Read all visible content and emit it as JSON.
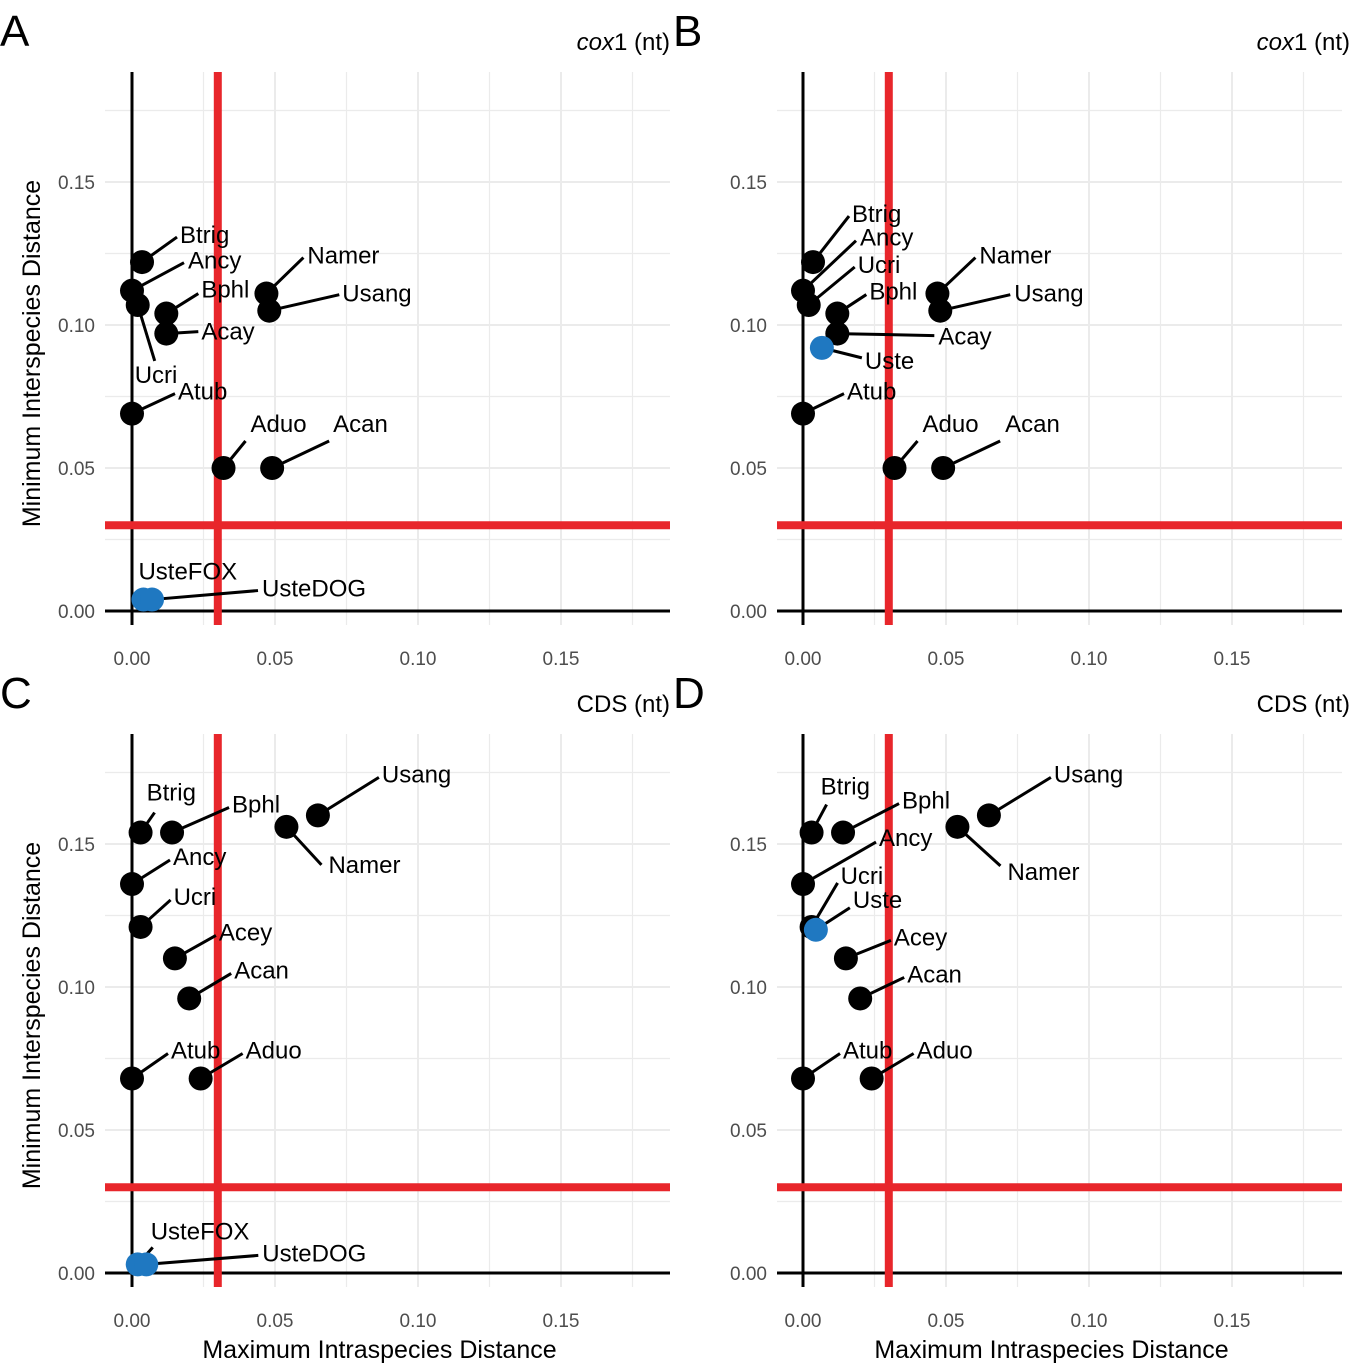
{
  "chart_data": [
    {
      "type": "scatter",
      "panel_label": "A",
      "title_italic": "cox",
      "title_rest": "1 (nt)",
      "xlabel": "",
      "ylabel": "Minimum Interspecies Distance",
      "xlim": [
        -0.0095,
        0.188
      ],
      "ylim": [
        -0.005,
        0.189
      ],
      "xticks": [
        "0.00",
        "0.05",
        "0.10",
        "0.15"
      ],
      "yticks": [
        "0.00",
        "0.05",
        "0.10",
        "0.15"
      ],
      "threshold_x": 0.03,
      "threshold_y": 0.03,
      "grid": true,
      "points": [
        {
          "label": "Btrig",
          "x": 0.0035,
          "y": 0.122,
          "color": "#000000"
        },
        {
          "label": "Ancy",
          "x": 0.0,
          "y": 0.112,
          "color": "#000000"
        },
        {
          "label": "Ucri",
          "x": 0.002,
          "y": 0.107,
          "color": "#000000"
        },
        {
          "label": "Bphl",
          "x": 0.012,
          "y": 0.104,
          "color": "#000000"
        },
        {
          "label": "Acay",
          "x": 0.012,
          "y": 0.097,
          "color": "#000000"
        },
        {
          "label": "Namer",
          "x": 0.047,
          "y": 0.111,
          "color": "#000000"
        },
        {
          "label": "Usang",
          "x": 0.048,
          "y": 0.105,
          "color": "#000000"
        },
        {
          "label": "Atub",
          "x": 0.0,
          "y": 0.069,
          "color": "#000000"
        },
        {
          "label": "Aduo",
          "x": 0.032,
          "y": 0.05,
          "color": "#000000"
        },
        {
          "label": "Acan",
          "x": 0.049,
          "y": 0.05,
          "color": "#000000"
        },
        {
          "label": "UsteFOX",
          "x": 0.004,
          "y": 0.004,
          "color": "#1f78c1"
        },
        {
          "label": "UsteDOG",
          "x": 0.007,
          "y": 0.004,
          "color": "#1f78c1"
        }
      ]
    },
    {
      "type": "scatter",
      "panel_label": "B",
      "title_italic": "cox",
      "title_rest": "1 (nt)",
      "xlabel": "",
      "ylabel": "",
      "xlim": [
        -0.0095,
        0.188
      ],
      "ylim": [
        -0.005,
        0.189
      ],
      "xticks": [
        "0.00",
        "0.05",
        "0.10",
        "0.15"
      ],
      "yticks": [
        "0.00",
        "0.05",
        "0.10",
        "0.15"
      ],
      "threshold_x": 0.03,
      "threshold_y": 0.03,
      "grid": true,
      "points": [
        {
          "label": "Btrig",
          "x": 0.0035,
          "y": 0.122,
          "color": "#000000"
        },
        {
          "label": "Ancy",
          "x": 0.0,
          "y": 0.112,
          "color": "#000000"
        },
        {
          "label": "Ucri",
          "x": 0.002,
          "y": 0.107,
          "color": "#000000"
        },
        {
          "label": "Bphl",
          "x": 0.012,
          "y": 0.104,
          "color": "#000000"
        },
        {
          "label": "Acay",
          "x": 0.012,
          "y": 0.097,
          "color": "#000000"
        },
        {
          "label": "Uste",
          "x": 0.0066,
          "y": 0.092,
          "color": "#1f78c1"
        },
        {
          "label": "Namer",
          "x": 0.047,
          "y": 0.111,
          "color": "#000000"
        },
        {
          "label": "Usang",
          "x": 0.048,
          "y": 0.105,
          "color": "#000000"
        },
        {
          "label": "Atub",
          "x": 0.0,
          "y": 0.069,
          "color": "#000000"
        },
        {
          "label": "Aduo",
          "x": 0.032,
          "y": 0.05,
          "color": "#000000"
        },
        {
          "label": "Acan",
          "x": 0.049,
          "y": 0.05,
          "color": "#000000"
        }
      ]
    },
    {
      "type": "scatter",
      "panel_label": "C",
      "title_italic": "",
      "title_rest": "CDS (nt)",
      "xlabel": "Maximum Intraspecies Distance",
      "ylabel": "Minimum Interspecies Distance",
      "xlim": [
        -0.0095,
        0.188
      ],
      "ylim": [
        -0.005,
        0.189
      ],
      "xticks": [
        "0.00",
        "0.05",
        "0.10",
        "0.15"
      ],
      "yticks": [
        "0.00",
        "0.05",
        "0.10",
        "0.15"
      ],
      "threshold_x": 0.03,
      "threshold_y": 0.03,
      "grid": true,
      "points": [
        {
          "label": "Btrig",
          "x": 0.003,
          "y": 0.154,
          "color": "#000000"
        },
        {
          "label": "Bphl",
          "x": 0.014,
          "y": 0.154,
          "color": "#000000"
        },
        {
          "label": "Ancy",
          "x": 0.0,
          "y": 0.136,
          "color": "#000000"
        },
        {
          "label": "Ucri",
          "x": 0.003,
          "y": 0.121,
          "color": "#000000"
        },
        {
          "label": "Acey",
          "x": 0.015,
          "y": 0.11,
          "color": "#000000"
        },
        {
          "label": "Acan",
          "x": 0.02,
          "y": 0.096,
          "color": "#000000"
        },
        {
          "label": "Atub",
          "x": 0.0,
          "y": 0.068,
          "color": "#000000"
        },
        {
          "label": "Aduo",
          "x": 0.024,
          "y": 0.068,
          "color": "#000000"
        },
        {
          "label": "Namer",
          "x": 0.054,
          "y": 0.156,
          "color": "#000000"
        },
        {
          "label": "Usang",
          "x": 0.065,
          "y": 0.16,
          "color": "#000000"
        },
        {
          "label": "UsteFOX",
          "x": 0.002,
          "y": 0.003,
          "color": "#1f78c1"
        },
        {
          "label": "UsteDOG",
          "x": 0.005,
          "y": 0.003,
          "color": "#1f78c1"
        }
      ]
    },
    {
      "type": "scatter",
      "panel_label": "D",
      "title_italic": "",
      "title_rest": "CDS (nt)",
      "xlabel": "Maximum Intraspecies Distance",
      "ylabel": "",
      "xlim": [
        -0.0095,
        0.188
      ],
      "ylim": [
        -0.005,
        0.189
      ],
      "xticks": [
        "0.00",
        "0.05",
        "0.10",
        "0.15"
      ],
      "yticks": [
        "0.00",
        "0.05",
        "0.10",
        "0.15"
      ],
      "threshold_x": 0.03,
      "threshold_y": 0.03,
      "grid": true,
      "points": [
        {
          "label": "Btrig",
          "x": 0.003,
          "y": 0.154,
          "color": "#000000"
        },
        {
          "label": "Bphl",
          "x": 0.014,
          "y": 0.154,
          "color": "#000000"
        },
        {
          "label": "Ancy",
          "x": 0.0,
          "y": 0.136,
          "color": "#000000"
        },
        {
          "label": "Ucri",
          "x": 0.003,
          "y": 0.121,
          "color": "#000000"
        },
        {
          "label": "Uste",
          "x": 0.0045,
          "y": 0.12,
          "color": "#1f78c1"
        },
        {
          "label": "Acey",
          "x": 0.015,
          "y": 0.11,
          "color": "#000000"
        },
        {
          "label": "Acan",
          "x": 0.02,
          "y": 0.096,
          "color": "#000000"
        },
        {
          "label": "Atub",
          "x": 0.0,
          "y": 0.068,
          "color": "#000000"
        },
        {
          "label": "Aduo",
          "x": 0.024,
          "y": 0.068,
          "color": "#000000"
        },
        {
          "label": "Namer",
          "x": 0.054,
          "y": 0.156,
          "color": "#000000"
        },
        {
          "label": "Usang",
          "x": 0.065,
          "y": 0.16,
          "color": "#000000"
        }
      ]
    }
  ],
  "colors": {
    "threshold": "#e8262b",
    "highlight": "#1f78c1",
    "point": "#000000",
    "grid": "#ebebeb"
  }
}
